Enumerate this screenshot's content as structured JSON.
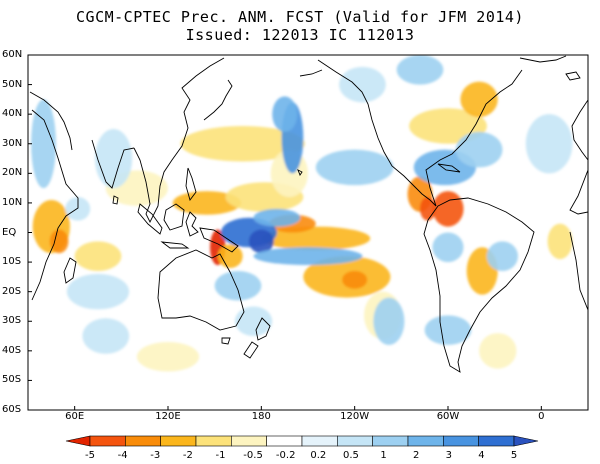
{
  "title": {
    "line1": "CGCM-CPTEC Prec. ANM. FCST  (Valid for JFM 2014)",
    "line2": "Issued:  122013 IC 112013"
  },
  "map": {
    "lon_range": [
      30,
      390
    ],
    "lat_range": [
      -60,
      60
    ],
    "lat_labels": [
      "60N",
      "50N",
      "40N",
      "30N",
      "20N",
      "10N",
      "EQ",
      "10S",
      "20S",
      "30S",
      "40S",
      "50S",
      "60S"
    ],
    "lon_labels": [
      "60E",
      "120E",
      "180",
      "120W",
      "60W",
      "0"
    ]
  },
  "colorbar": {
    "labels": [
      "-5",
      "-4",
      "-3",
      "-2",
      "-1",
      "-0.5",
      "-0.2",
      "0.2",
      "0.5",
      "1",
      "2",
      "3",
      "4",
      "5"
    ],
    "colors": [
      "#e22400",
      "#f4540e",
      "#f98c0a",
      "#fbb61c",
      "#fce27a",
      "#fdf4c0",
      "#ffffff",
      "#e5f3fb",
      "#c5e5f6",
      "#9dd0f1",
      "#6eb4ea",
      "#4893e0",
      "#2f6fd2",
      "#2a52be"
    ]
  },
  "anomalies": [
    {
      "lon": 145,
      "lat": 10,
      "rx": 22,
      "ry": 4,
      "v": -2
    },
    {
      "lon": 215,
      "lat": -2,
      "rx": 35,
      "ry": 4,
      "v": -2
    },
    {
      "lon": 200,
      "lat": 3,
      "rx": 15,
      "ry": 3,
      "v": -3
    },
    {
      "lon": 182,
      "lat": 12,
      "rx": 25,
      "ry": 5,
      "v": -1
    },
    {
      "lon": 168,
      "lat": 30,
      "rx": 40,
      "ry": 6,
      "v": -1
    },
    {
      "lon": 198,
      "lat": 20,
      "rx": 12,
      "ry": 8,
      "v": -0.5
    },
    {
      "lon": 300,
      "lat": 36,
      "rx": 25,
      "ry": 6,
      "v": -1
    },
    {
      "lon": 320,
      "lat": 45,
      "rx": 12,
      "ry": 6,
      "v": -2
    },
    {
      "lon": 282,
      "lat": 13,
      "rx": 8,
      "ry": 6,
      "v": -3
    },
    {
      "lon": 300,
      "lat": 8,
      "rx": 10,
      "ry": 6,
      "v": -4
    },
    {
      "lon": 287,
      "lat": 8,
      "rx": 5,
      "ry": 4,
      "v": -4
    },
    {
      "lon": 235,
      "lat": -15,
      "rx": 28,
      "ry": 7,
      "v": -2
    },
    {
      "lon": 240,
      "lat": -16,
      "rx": 8,
      "ry": 3,
      "v": -3
    },
    {
      "lon": 152,
      "lat": -5,
      "rx": 5,
      "ry": 6,
      "v": -5
    },
    {
      "lon": 160,
      "lat": -8,
      "rx": 8,
      "ry": 4,
      "v": -2
    },
    {
      "lon": 45,
      "lat": 2,
      "rx": 12,
      "ry": 9,
      "v": -2
    },
    {
      "lon": 50,
      "lat": -3,
      "rx": 6,
      "ry": 4,
      "v": -3
    },
    {
      "lon": 75,
      "lat": -8,
      "rx": 15,
      "ry": 5,
      "v": -1
    },
    {
      "lon": 322,
      "lat": -13,
      "rx": 10,
      "ry": 8,
      "v": -2
    },
    {
      "lon": 372,
      "lat": -3,
      "rx": 8,
      "ry": 6,
      "v": -1
    },
    {
      "lon": 100,
      "lat": 15,
      "rx": 20,
      "ry": 6,
      "v": -0.5
    },
    {
      "lon": 258,
      "lat": -28,
      "rx": 12,
      "ry": 8,
      "v": -0.5
    },
    {
      "lon": 332,
      "lat": -40,
      "rx": 12,
      "ry": 6,
      "v": -0.5
    },
    {
      "lon": 120,
      "lat": -42,
      "rx": 20,
      "ry": 5,
      "v": -0.5
    },
    {
      "lon": 172,
      "lat": 0,
      "rx": 18,
      "ry": 5,
      "v": 4
    },
    {
      "lon": 180,
      "lat": -3,
      "rx": 8,
      "ry": 4,
      "v": 5
    },
    {
      "lon": 210,
      "lat": -8,
      "rx": 35,
      "ry": 3,
      "v": 2
    },
    {
      "lon": 190,
      "lat": 5,
      "rx": 15,
      "ry": 3,
      "v": 2
    },
    {
      "lon": 200,
      "lat": 32,
      "rx": 7,
      "ry": 12,
      "v": 3
    },
    {
      "lon": 195,
      "lat": 40,
      "rx": 8,
      "ry": 6,
      "v": 2
    },
    {
      "lon": 240,
      "lat": 22,
      "rx": 25,
      "ry": 6,
      "v": 1
    },
    {
      "lon": 298,
      "lat": 22,
      "rx": 20,
      "ry": 6,
      "v": 2
    },
    {
      "lon": 320,
      "lat": 28,
      "rx": 15,
      "ry": 6,
      "v": 1
    },
    {
      "lon": 282,
      "lat": 55,
      "rx": 15,
      "ry": 5,
      "v": 1
    },
    {
      "lon": 40,
      "lat": 30,
      "rx": 8,
      "ry": 15,
      "v": 1
    },
    {
      "lon": 85,
      "lat": 25,
      "rx": 12,
      "ry": 10,
      "v": 0.5
    },
    {
      "lon": 300,
      "lat": -5,
      "rx": 10,
      "ry": 5,
      "v": 1
    },
    {
      "lon": 335,
      "lat": -8,
      "rx": 10,
      "ry": 5,
      "v": 1
    },
    {
      "lon": 262,
      "lat": -30,
      "rx": 10,
      "ry": 8,
      "v": 1
    },
    {
      "lon": 300,
      "lat": -33,
      "rx": 15,
      "ry": 5,
      "v": 1
    },
    {
      "lon": 165,
      "lat": -18,
      "rx": 15,
      "ry": 5,
      "v": 1
    },
    {
      "lon": 175,
      "lat": -30,
      "rx": 12,
      "ry": 5,
      "v": 0.5
    },
    {
      "lon": 80,
      "lat": -35,
      "rx": 15,
      "ry": 6,
      "v": 0.5
    },
    {
      "lon": 75,
      "lat": -20,
      "rx": 20,
      "ry": 6,
      "v": 0.5
    },
    {
      "lon": 62,
      "lat": 8,
      "rx": 8,
      "ry": 4,
      "v": 0.5
    },
    {
      "lon": 365,
      "lat": 30,
      "rx": 15,
      "ry": 10,
      "v": 0.5
    },
    {
      "lon": 245,
      "lat": 50,
      "rx": 15,
      "ry": 6,
      "v": 0.5
    }
  ]
}
